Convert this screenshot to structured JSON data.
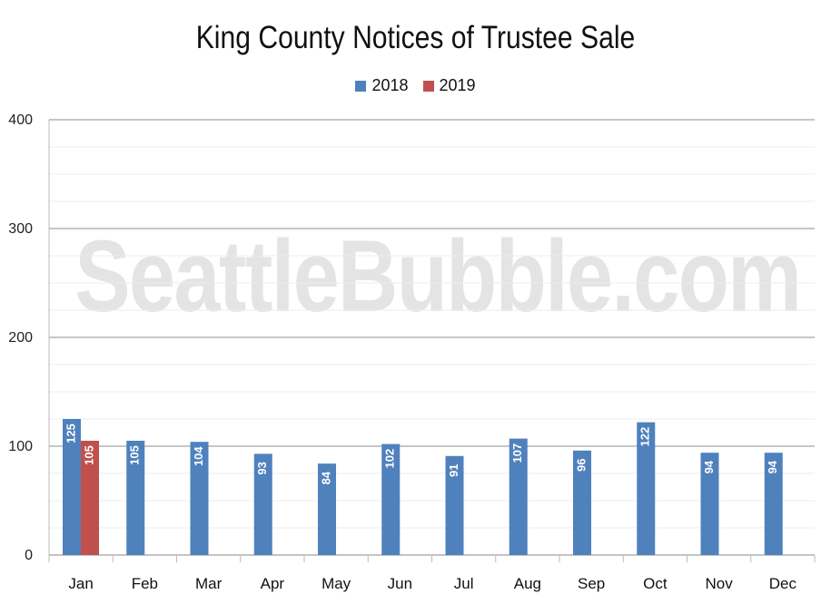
{
  "watermark": "SeattleBubble.com",
  "chart_data": {
    "type": "bar",
    "title": "King County Notices of Trustee Sale",
    "xlabel": "",
    "ylabel": "",
    "ylim": [
      0,
      400
    ],
    "yticks": [
      0,
      100,
      200,
      300,
      400
    ],
    "grid": true,
    "legend_position": "top-center",
    "categories": [
      "Jan",
      "Feb",
      "Mar",
      "Apr",
      "May",
      "Jun",
      "Jul",
      "Aug",
      "Sep",
      "Oct",
      "Nov",
      "Dec"
    ],
    "series": [
      {
        "name": "2018",
        "color": "#4f81bd",
        "values": [
          125,
          105,
          104,
          93,
          84,
          102,
          91,
          107,
          96,
          122,
          94,
          94
        ]
      },
      {
        "name": "2019",
        "color": "#c0504d",
        "values": [
          105,
          null,
          null,
          null,
          null,
          null,
          null,
          null,
          null,
          null,
          null,
          null
        ]
      }
    ]
  }
}
